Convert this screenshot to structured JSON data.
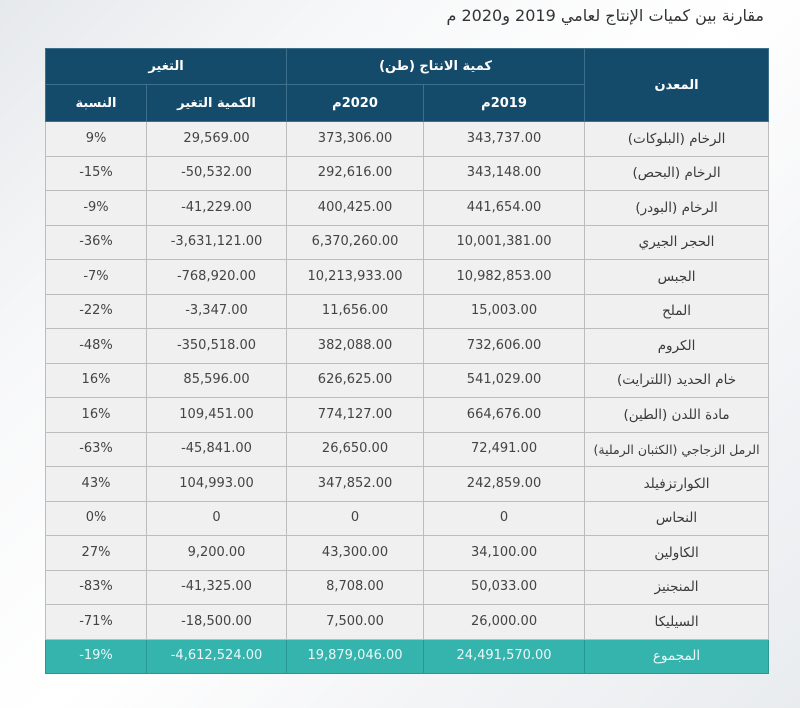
{
  "title": "مقارنة بين كميات الإنتاج لعامي 2019 و2020 م",
  "header": {
    "mineral": "المعدن",
    "production_group": "كمية الانتاج (طن)",
    "change_group": "التغير",
    "year_2019": "2019م",
    "year_2020": "2020م",
    "change_amount": "الكمية التغير",
    "change_pct": "النسبة"
  },
  "rows": [
    {
      "mineral": "الرخام (البلوكات)",
      "y2019": "343,737.00",
      "y2020": "373,306.00",
      "change": "29,569.00",
      "pct": "9%"
    },
    {
      "mineral": "الرخام (البحص)",
      "y2019": "343,148.00",
      "y2020": "292,616.00",
      "change": "-50,532.00",
      "pct": "-15%"
    },
    {
      "mineral": "الرخام (البودر)",
      "y2019": "441,654.00",
      "y2020": "400,425.00",
      "change": "-41,229.00",
      "pct": "-9%"
    },
    {
      "mineral": "الحجر الجيري",
      "y2019": "10,001,381.00",
      "y2020": "6,370,260.00",
      "change": "-3,631,121.00",
      "pct": "-36%"
    },
    {
      "mineral": "الجبس",
      "y2019": "10,982,853.00",
      "y2020": "10,213,933.00",
      "change": "-768,920.00",
      "pct": "-7%"
    },
    {
      "mineral": "الملح",
      "y2019": "15,003.00",
      "y2020": "11,656.00",
      "change": "-3,347.00",
      "pct": "-22%"
    },
    {
      "mineral": "الكروم",
      "y2019": "732,606.00",
      "y2020": "382,088.00",
      "change": "-350,518.00",
      "pct": "-48%"
    },
    {
      "mineral": "خام الحديد (اللترايت)",
      "y2019": "541,029.00",
      "y2020": "626,625.00",
      "change": "85,596.00",
      "pct": "16%"
    },
    {
      "mineral": "مادة اللدن (الطين)",
      "y2019": "664,676.00",
      "y2020": "774,127.00",
      "change": "109,451.00",
      "pct": "16%"
    },
    {
      "mineral": "الرمل الزجاجي (الكثبان الرملية)",
      "y2019": "72,491.00",
      "y2020": "26,650.00",
      "change": "-45,841.00",
      "pct": "-63%"
    },
    {
      "mineral": "الكوارتزفيلد",
      "y2019": "242,859.00",
      "y2020": "347,852.00",
      "change": "104,993.00",
      "pct": "43%"
    },
    {
      "mineral": "النحاس",
      "y2019": "0",
      "y2020": "0",
      "change": "0",
      "pct": "0%"
    },
    {
      "mineral": "الكاولين",
      "y2019": "34,100.00",
      "y2020": "43,300.00",
      "change": "9,200.00",
      "pct": "27%"
    },
    {
      "mineral": "المنجنيز",
      "y2019": "50,033.00",
      "y2020": "8,708.00",
      "change": "-41,325.00",
      "pct": "-83%"
    },
    {
      "mineral": "السيليكا",
      "y2019": "26,000.00",
      "y2020": "7,500.00",
      "change": "-18,500.00",
      "pct": "-71%"
    }
  ],
  "total": {
    "mineral": "المجموع",
    "y2019": "24,491,570.00",
    "y2020": "19,879,046.00",
    "change": "-4,612,524.00",
    "pct": "-19%"
  },
  "colors": {
    "header_bg": "#154b6a",
    "total_bg": "#35b3ad",
    "row_bg": "#f0f0f0"
  }
}
